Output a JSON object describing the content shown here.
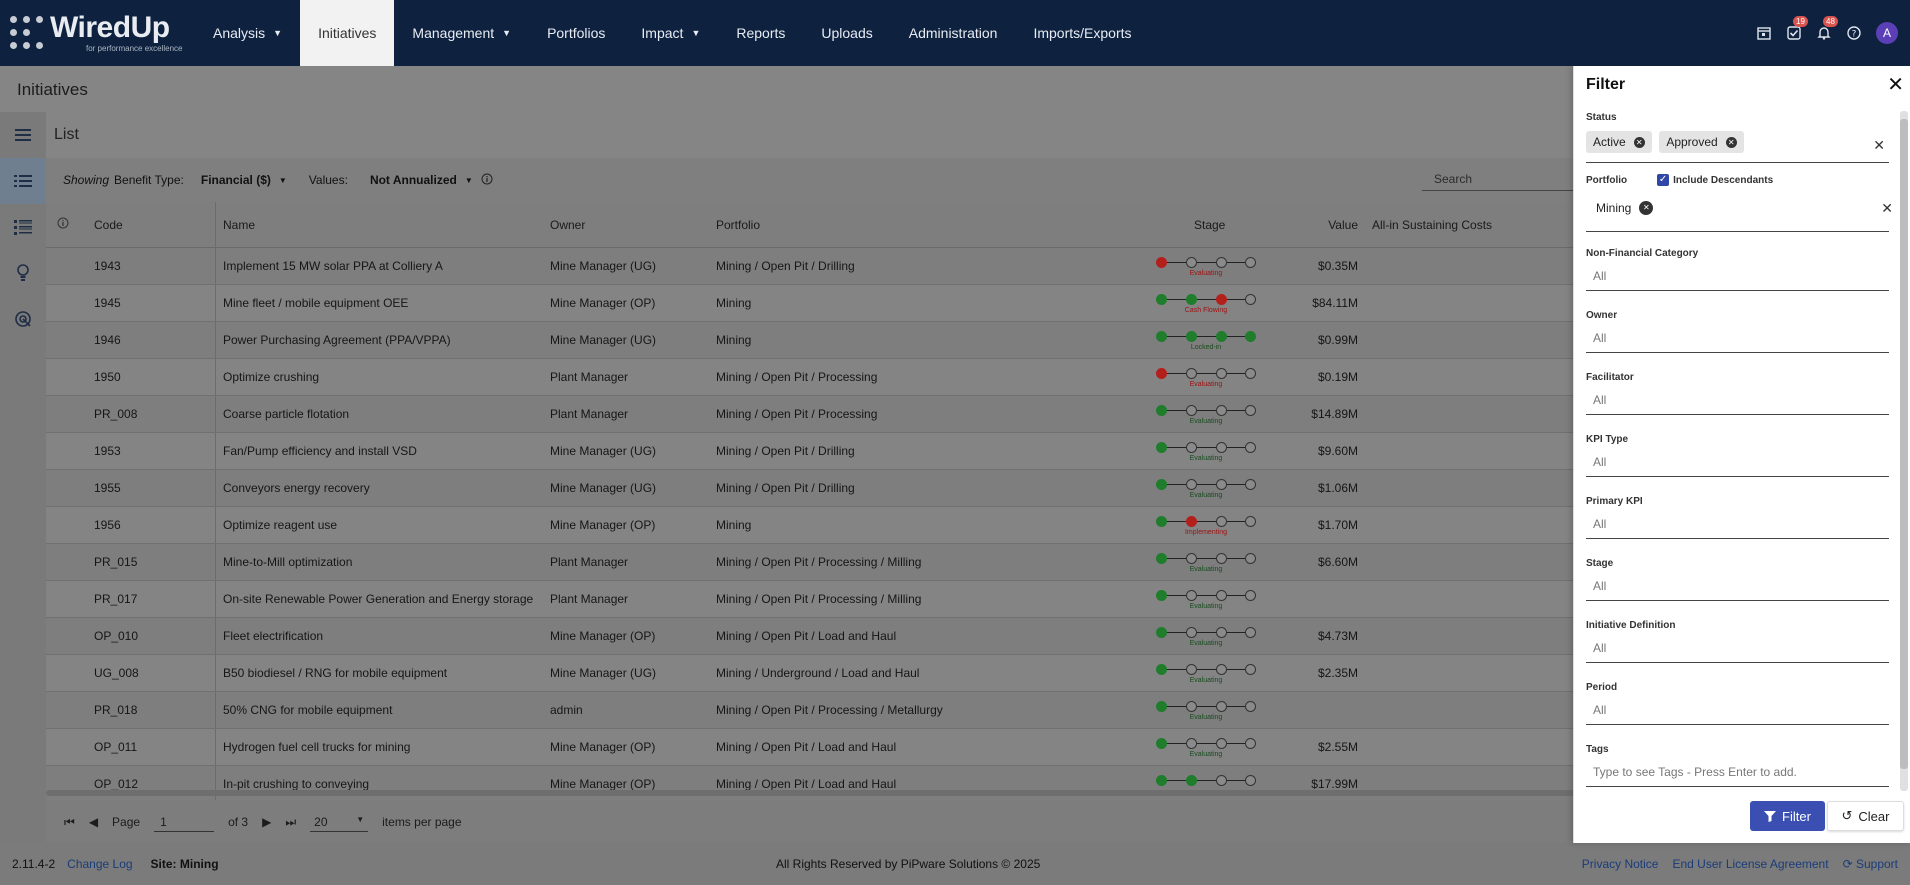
{
  "logo": {
    "name": "WiredUp",
    "tagline": "for performance excellence"
  },
  "nav": {
    "items": [
      {
        "label": "Analysis",
        "caret": true
      },
      {
        "label": "Initiatives",
        "active": true
      },
      {
        "label": "Management",
        "caret": true
      },
      {
        "label": "Portfolios"
      },
      {
        "label": "Impact",
        "caret": true
      },
      {
        "label": "Reports"
      },
      {
        "label": "Uploads"
      },
      {
        "label": "Administration"
      },
      {
        "label": "Imports/Exports"
      }
    ],
    "tasks_badge": "19",
    "notifications_badge": "48",
    "avatar": "A"
  },
  "page": {
    "title": "Initiatives",
    "view": "List"
  },
  "filterbar": {
    "showing": "Showing",
    "benefit_label": "Benefit Type:",
    "benefit_value": "Financial ($)",
    "values_label": "Values:",
    "values_value": "Not Annualized",
    "search_placeholder": "Search"
  },
  "grid": {
    "headers": {
      "code": "Code",
      "name": "Name",
      "owner": "Owner",
      "portfolio": "Portfolio",
      "stage": "Stage",
      "value": "Value",
      "sustaining": "All-in Sustaining Costs"
    },
    "rows": [
      {
        "code": "1943",
        "name": "Implement 15 MW solar PPA at Colliery A",
        "owner": "Mine Manager (UG)",
        "portfolio": "Mining / Open Pit / Drilling",
        "value": "$0.35M",
        "stage": "Evaluating",
        "dots": [
          "r",
          "o",
          "o",
          "o"
        ],
        "tone": "r"
      },
      {
        "code": "1945",
        "name": "Mine fleet / mobile equipment OEE",
        "owner": "Mine Manager (OP)",
        "portfolio": "Mining",
        "value": "$84.11M",
        "stage": "Cash Flowing",
        "dots": [
          "g",
          "g",
          "r",
          "o"
        ],
        "tone": "r"
      },
      {
        "code": "1946",
        "name": "Power Purchasing Agreement (PPA/VPPA)",
        "owner": "Mine Manager (UG)",
        "portfolio": "Mining",
        "value": "$0.99M",
        "stage": "Locked-in",
        "dots": [
          "g",
          "g",
          "g",
          "g"
        ],
        "tone": "g"
      },
      {
        "code": "1950",
        "name": "Optimize crushing",
        "owner": "Plant Manager",
        "portfolio": "Mining / Open Pit / Processing",
        "value": "$0.19M",
        "stage": "Evaluating",
        "dots": [
          "r",
          "o",
          "o",
          "o"
        ],
        "tone": "r"
      },
      {
        "code": "PR_008",
        "name": "Coarse particle flotation",
        "owner": "Plant Manager",
        "portfolio": "Mining / Open Pit / Processing",
        "value": "$14.89M",
        "stage": "Evaluating",
        "dots": [
          "g",
          "o",
          "o",
          "o"
        ],
        "tone": "g"
      },
      {
        "code": "1953",
        "name": "Fan/Pump efficiency and install VSD",
        "owner": "Mine Manager (UG)",
        "portfolio": "Mining / Open Pit / Drilling",
        "value": "$9.60M",
        "stage": "Evaluating",
        "dots": [
          "g",
          "o",
          "o",
          "o"
        ],
        "tone": "g"
      },
      {
        "code": "1955",
        "name": "Conveyors energy recovery",
        "owner": "Mine Manager (UG)",
        "portfolio": "Mining / Open Pit / Drilling",
        "value": "$1.06M",
        "stage": "Evaluating",
        "dots": [
          "g",
          "o",
          "o",
          "o"
        ],
        "tone": "g"
      },
      {
        "code": "1956",
        "name": "Optimize reagent use",
        "owner": "Mine Manager (OP)",
        "portfolio": "Mining",
        "value": "$1.70M",
        "stage": "Implementing",
        "dots": [
          "g",
          "r",
          "o",
          "o"
        ],
        "tone": "r"
      },
      {
        "code": "PR_015",
        "name": "Mine-to-Mill optimization",
        "owner": "Plant Manager",
        "portfolio": "Mining / Open Pit / Processing / Milling",
        "value": "$6.60M",
        "stage": "Evaluating",
        "dots": [
          "g",
          "o",
          "o",
          "o"
        ],
        "tone": "g"
      },
      {
        "code": "PR_017",
        "name": "On-site Renewable Power Generation and Energy storage",
        "owner": "Plant Manager",
        "portfolio": "Mining / Open Pit / Processing / Milling",
        "value": "",
        "stage": "Evaluating",
        "dots": [
          "g",
          "o",
          "o",
          "o"
        ],
        "tone": "g"
      },
      {
        "code": "OP_010",
        "name": "Fleet electrification",
        "owner": "Mine Manager (OP)",
        "portfolio": "Mining / Open Pit / Load and Haul",
        "value": "$4.73M",
        "stage": "Evaluating",
        "dots": [
          "g",
          "o",
          "o",
          "o"
        ],
        "tone": "g"
      },
      {
        "code": "UG_008",
        "name": "B50 biodiesel / RNG for mobile equipment",
        "owner": "Mine Manager (UG)",
        "portfolio": "Mining / Underground / Load and Haul",
        "value": "$2.35M",
        "stage": "Evaluating",
        "dots": [
          "g",
          "o",
          "o",
          "o"
        ],
        "tone": "g"
      },
      {
        "code": "PR_018",
        "name": "50% CNG for mobile equipment",
        "owner": "admin",
        "portfolio": "Mining / Open Pit / Processing / Metallurgy",
        "value": "",
        "stage": "Evaluating",
        "dots": [
          "g",
          "o",
          "o",
          "o"
        ],
        "tone": "g"
      },
      {
        "code": "OP_011",
        "name": "Hydrogen fuel cell trucks for mining",
        "owner": "Mine Manager (OP)",
        "portfolio": "Mining / Open Pit / Load and Haul",
        "value": "$2.55M",
        "stage": "Evaluating",
        "dots": [
          "g",
          "o",
          "o",
          "o"
        ],
        "tone": "g"
      },
      {
        "code": "OP_012",
        "name": "In-pit crushing to conveying",
        "owner": "Mine Manager (OP)",
        "portfolio": "Mining / Open Pit / Load and Haul",
        "value": "$17.99M",
        "stage": "",
        "dots": [
          "g",
          "g",
          "o",
          "o"
        ],
        "tone": "g"
      }
    ]
  },
  "pager": {
    "page_label": "Page",
    "page": "1",
    "of": "of 3",
    "per_page": "20",
    "per_page_label": "items per page"
  },
  "footer": {
    "version": "2.11.4-2",
    "changelog": "Change Log",
    "site": "Site: Mining",
    "copyright": "All Rights Reserved by PiPware Solutions © 2025",
    "privacy": "Privacy Notice",
    "eula": "End User License Agreement",
    "support": "Support"
  },
  "filter_panel": {
    "title": "Filter",
    "status_label": "Status",
    "status_chips": [
      "Active",
      "Approved"
    ],
    "portfolio_label": "Portfolio",
    "include_descendants": "Include Descendants",
    "portfolio_chips": [
      "Mining"
    ],
    "fields": [
      {
        "label": "Non-Financial Category",
        "value": "All"
      },
      {
        "label": "Owner",
        "value": "All"
      },
      {
        "label": "Facilitator",
        "value": "All"
      },
      {
        "label": "KPI Type",
        "value": "All"
      },
      {
        "label": "Primary KPI",
        "value": "All"
      },
      {
        "label": "Stage",
        "value": "All"
      },
      {
        "label": "Initiative Definition",
        "value": "All"
      },
      {
        "label": "Period",
        "value": "All"
      },
      {
        "label": "Tags",
        "value": "Type to see Tags - Press Enter to add."
      }
    ],
    "filter_button": "Filter",
    "clear_button": "Clear"
  }
}
